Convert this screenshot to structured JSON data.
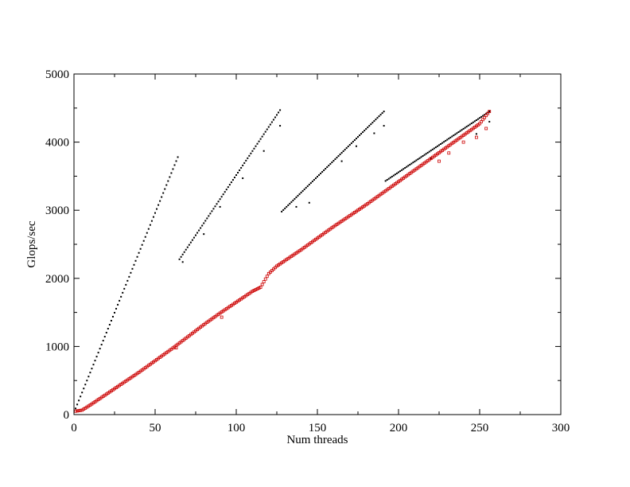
{
  "chart_data": {
    "type": "scatter",
    "title": "",
    "xlabel": "Num threads",
    "ylabel": "Glops/sec",
    "xlim": [
      0,
      300
    ],
    "ylim": [
      0,
      5000
    ],
    "xticks": [
      0,
      50,
      100,
      150,
      200,
      250,
      300
    ],
    "yticks": [
      0,
      1000,
      2000,
      3000,
      4000,
      5000
    ],
    "xtick_labels": [
      "0",
      "50",
      "100",
      "150",
      "200",
      "250",
      "300"
    ],
    "ytick_labels": [
      "0",
      "1000",
      "2000",
      "3000",
      "4000",
      "5000"
    ],
    "grid": false,
    "legend": "none",
    "series": [
      {
        "marker": "dot",
        "color": "#000000",
        "segments": [
          {
            "x_range": [
              1,
              64
            ],
            "y_start": 90,
            "y_end": 3780
          },
          {
            "x_range": [
              65,
              127
            ],
            "y_start": 2280,
            "y_end": 4470
          },
          {
            "x_range": [
              128,
              191
            ],
            "y_start": 2980,
            "y_end": 4450
          },
          {
            "x_range": [
              192,
              256
            ],
            "y_start": 3430,
            "y_end": 4450
          }
        ],
        "outliers": [
          [
            67,
            2240
          ],
          [
            80,
            2650
          ],
          [
            90,
            3050
          ],
          [
            104,
            3470
          ],
          [
            117,
            3870
          ],
          [
            127,
            4240
          ],
          [
            137,
            3050
          ],
          [
            145,
            3110
          ],
          [
            165,
            3720
          ],
          [
            174,
            3940
          ],
          [
            185,
            4130
          ],
          [
            191,
            4240
          ],
          [
            220,
            3760
          ],
          [
            248,
            4120
          ],
          [
            256,
            4300
          ]
        ]
      },
      {
        "marker": "square",
        "color": "#cc0000",
        "x_range": [
          1,
          256
        ],
        "points": [
          [
            1,
            50
          ],
          [
            5,
            65
          ],
          [
            10,
            140
          ],
          [
            20,
            300
          ],
          [
            30,
            460
          ],
          [
            40,
            620
          ],
          [
            50,
            790
          ],
          [
            60,
            960
          ],
          [
            70,
            1140
          ],
          [
            80,
            1320
          ],
          [
            90,
            1490
          ],
          [
            100,
            1650
          ],
          [
            110,
            1810
          ],
          [
            115,
            1870
          ],
          [
            120,
            2070
          ],
          [
            125,
            2180
          ],
          [
            130,
            2260
          ],
          [
            140,
            2420
          ],
          [
            150,
            2590
          ],
          [
            160,
            2760
          ],
          [
            170,
            2920
          ],
          [
            180,
            3080
          ],
          [
            190,
            3250
          ],
          [
            200,
            3420
          ],
          [
            210,
            3590
          ],
          [
            220,
            3760
          ],
          [
            230,
            3930
          ],
          [
            240,
            4100
          ],
          [
            250,
            4270
          ],
          [
            256,
            4450
          ]
        ],
        "outliers": [
          [
            63,
            980
          ],
          [
            91,
            1430
          ],
          [
            225,
            3720
          ],
          [
            231,
            3840
          ],
          [
            240,
            4000
          ],
          [
            248,
            4070
          ],
          [
            254,
            4200
          ]
        ]
      }
    ]
  }
}
